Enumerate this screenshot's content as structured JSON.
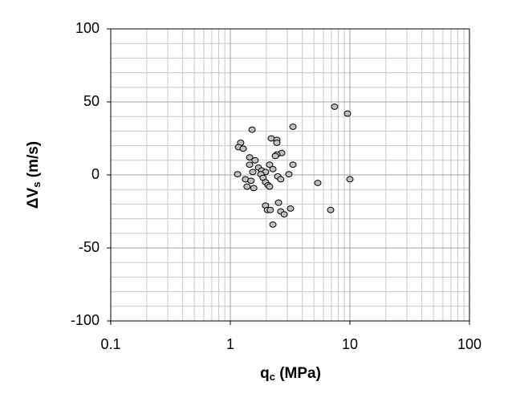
{
  "chart_data": {
    "type": "scatter",
    "x_label": [
      "q",
      "c",
      " (MPa)"
    ],
    "y_label": [
      "ΔV",
      "s",
      " (m/s)"
    ],
    "xlog": true,
    "xlim": [
      0.1,
      100
    ],
    "ylim": [
      -100,
      100
    ],
    "xticks": [
      0.1,
      1,
      10,
      100
    ],
    "yticks": [
      -100,
      -50,
      0,
      50,
      100
    ],
    "xminorticks": [
      0.2,
      0.3,
      0.4,
      0.5,
      0.6,
      0.7,
      0.8,
      0.9,
      2,
      3,
      4,
      5,
      6,
      7,
      8,
      9,
      20,
      30,
      40,
      50,
      60,
      70,
      80,
      90
    ],
    "yminorticks": [
      -90,
      -80,
      -70,
      -60,
      -40,
      -30,
      -20,
      -10,
      10,
      20,
      30,
      40,
      60,
      70,
      80,
      90
    ],
    "grid": true,
    "color": "#c0c0c0",
    "x": [
      7.45,
      9.55,
      3.34,
      1.52,
      2.2,
      2.45,
      2.45,
      1.22,
      1.17,
      1.28,
      2.69,
      2.45,
      2.38,
      1.45,
      1.61,
      1.45,
      2.13,
      3.34,
      1.72,
      2.27,
      1.83,
      1.54,
      1.97,
      1.15,
      3.09,
      1.8,
      2.49,
      1.88,
      1.34,
      2.64,
      10,
      1.49,
      1.97,
      5.39,
      2.07,
      1.38,
      1.57,
      2.13,
      2.53,
      1.97,
      2.04,
      2.16,
      3.19,
      6.9,
      2.64,
      2.82,
      2.27
    ],
    "values": [
      46.7,
      42,
      33,
      31,
      25,
      24,
      22,
      22,
      19,
      18,
      15,
      14,
      13,
      12,
      10,
      7,
      7,
      7,
      5,
      4,
      3,
      2,
      2,
      0.5,
      0.5,
      0.5,
      -1,
      -2,
      -3,
      -3,
      -3,
      -4,
      -5,
      -5.5,
      -7,
      -8,
      -9,
      -8,
      -19,
      -21,
      -24,
      -24,
      -23,
      -24,
      -25,
      -27,
      -34
    ]
  }
}
